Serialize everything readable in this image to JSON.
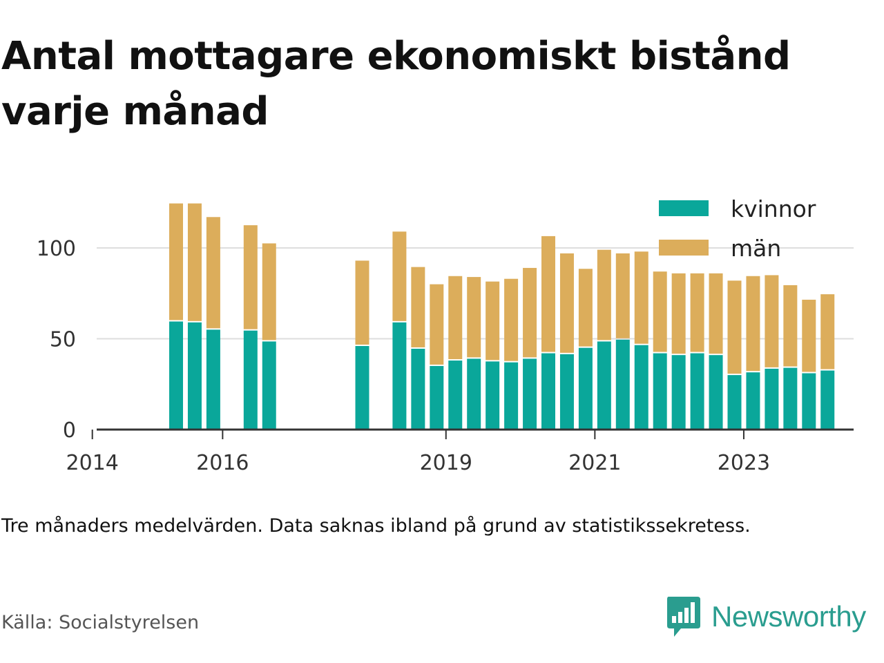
{
  "title": "Antal mottagare ekonomiskt bistånd varje månad",
  "note": "Tre månaders medelvärden. Data saknas ibland på grund av statistikssekretess.",
  "source": "Källa: Socialstyrelsen",
  "brand": {
    "name": "Newsworthy",
    "icon": "newsworthy-logo-icon"
  },
  "colors": {
    "kvinnor": "#0aa79a",
    "man": "#dcad5b",
    "grid": "#dddddd",
    "axis": "#333333"
  },
  "chart_data": {
    "type": "bar",
    "stacked": true,
    "title": "Antal mottagare ekonomiskt bistånd varje månad",
    "xlabel": "",
    "ylabel": "",
    "ylim": [
      0,
      125
    ],
    "yticks": [
      0,
      50,
      100
    ],
    "xticks": [
      "2014",
      "2016",
      "2019",
      "2021",
      "2023"
    ],
    "grid": "horizontal",
    "legend_position": "top-right",
    "x": [
      "2014-Q3",
      "2014-Q4",
      "2015-Q1",
      "2015-Q2",
      "2015-Q3",
      "2015-Q4",
      "2016-Q1",
      "2016-Q2",
      "2016-Q3",
      "2016-Q4",
      "2017-Q1",
      "2017-Q2",
      "2017-Q3",
      "2017-Q4",
      "2018-Q1",
      "2018-Q2",
      "2018-Q3",
      "2018-Q4",
      "2019-Q1",
      "2019-Q2",
      "2019-Q3",
      "2019-Q4",
      "2020-Q1",
      "2020-Q2",
      "2020-Q3",
      "2020-Q4",
      "2021-Q1",
      "2021-Q2",
      "2021-Q3",
      "2021-Q4",
      "2022-Q1",
      "2022-Q2",
      "2022-Q3",
      "2022-Q4",
      "2023-Q1",
      "2023-Q2",
      "2023-Q3",
      "2023-Q4",
      "2024-Q1"
    ],
    "series": [
      {
        "name": "kvinnor",
        "values": [
          null,
          null,
          null,
          59.5,
          59,
          55,
          null,
          54.5,
          48.5,
          null,
          null,
          null,
          null,
          46,
          null,
          59,
          44.5,
          35,
          38,
          39,
          37.5,
          37,
          39,
          42,
          41.5,
          45,
          48.5,
          49.5,
          46.5,
          42,
          41,
          42,
          41,
          30,
          31.5,
          33.5,
          34,
          31,
          32.5
        ]
      },
      {
        "name": "män",
        "values": [
          null,
          null,
          null,
          65,
          65.5,
          62,
          null,
          58,
          54,
          null,
          null,
          null,
          null,
          47,
          null,
          50,
          45,
          45,
          46.5,
          45,
          44,
          46,
          50,
          64.5,
          55.5,
          43.5,
          50.5,
          47.5,
          51.5,
          45,
          45,
          44,
          45,
          52,
          53,
          51.5,
          45.5,
          40.5,
          42
        ]
      }
    ]
  }
}
